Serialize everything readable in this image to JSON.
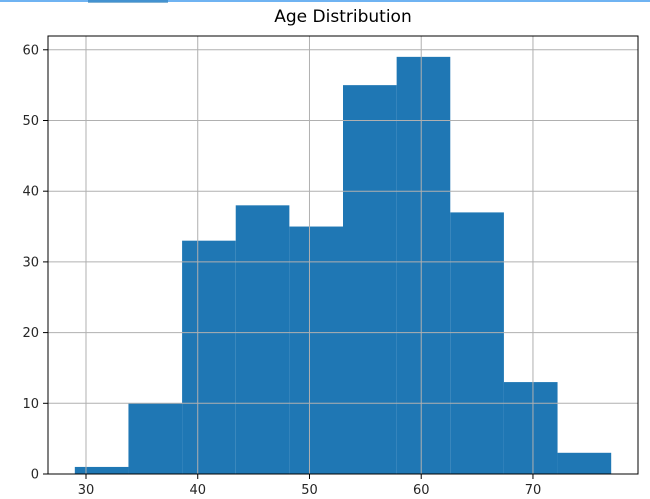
{
  "chart_data": {
    "type": "bar",
    "title": "Age Distribution",
    "xlabel": "",
    "ylabel": "",
    "bins": [
      {
        "x0": 29.0,
        "x1": 33.8,
        "count": 1
      },
      {
        "x0": 33.8,
        "x1": 38.6,
        "count": 10
      },
      {
        "x0": 38.6,
        "x1": 43.4,
        "count": 33
      },
      {
        "x0": 43.4,
        "x1": 48.2,
        "count": 38
      },
      {
        "x0": 48.2,
        "x1": 53.0,
        "count": 35
      },
      {
        "x0": 53.0,
        "x1": 57.8,
        "count": 55
      },
      {
        "x0": 57.8,
        "x1": 62.6,
        "count": 59
      },
      {
        "x0": 62.6,
        "x1": 67.4,
        "count": 37
      },
      {
        "x0": 67.4,
        "x1": 72.2,
        "count": 13
      },
      {
        "x0": 72.2,
        "x1": 77.0,
        "count": 3
      }
    ],
    "xlim": [
      26.6,
      79.4
    ],
    "ylim": [
      0,
      61.95
    ],
    "xticks": [
      30,
      40,
      50,
      60,
      70
    ],
    "yticks": [
      0,
      10,
      20,
      30,
      40,
      50,
      60
    ],
    "grid": true,
    "colors": {
      "bar": "#1f77b4",
      "grid": "#b0b0b0",
      "frame": "#000000"
    }
  }
}
